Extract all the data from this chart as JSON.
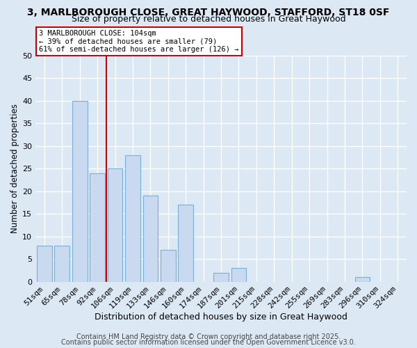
{
  "title1": "3, MARLBOROUGH CLOSE, GREAT HAYWOOD, STAFFORD, ST18 0SF",
  "title2": "Size of property relative to detached houses in Great Haywood",
  "xlabel": "Distribution of detached houses by size in Great Haywood",
  "ylabel": "Number of detached properties",
  "bar_labels": [
    "51sqm",
    "65sqm",
    "78sqm",
    "92sqm",
    "106sqm",
    "119sqm",
    "133sqm",
    "146sqm",
    "160sqm",
    "174sqm",
    "187sqm",
    "201sqm",
    "215sqm",
    "228sqm",
    "242sqm",
    "255sqm",
    "269sqm",
    "283sqm",
    "296sqm",
    "310sqm",
    "324sqm"
  ],
  "bar_values": [
    8,
    8,
    40,
    24,
    25,
    28,
    19,
    7,
    17,
    0,
    2,
    3,
    0,
    0,
    0,
    0,
    0,
    0,
    1,
    0,
    0
  ],
  "bar_color": "#c9d9f0",
  "bar_edge_color": "#7bafd4",
  "ylim": [
    0,
    50
  ],
  "yticks": [
    0,
    5,
    10,
    15,
    20,
    25,
    30,
    35,
    40,
    45,
    50
  ],
  "vline_color": "#cc0000",
  "vline_x": 3.5,
  "annotation_title": "3 MARLBOROUGH CLOSE: 104sqm",
  "annotation_line1": "← 39% of detached houses are smaller (79)",
  "annotation_line2": "61% of semi-detached houses are larger (126) →",
  "annotation_box_color": "#ffffff",
  "annotation_box_edge": "#cc0000",
  "footer1": "Contains HM Land Registry data © Crown copyright and database right 2025.",
  "footer2": "Contains public sector information licensed under the Open Government Licence v3.0.",
  "bg_color": "#dde8f5",
  "grid_color": "#ffffff",
  "title1_fontsize": 10,
  "title2_fontsize": 9,
  "xlabel_fontsize": 9,
  "ylabel_fontsize": 8.5,
  "tick_fontsize": 8,
  "footer_fontsize": 7
}
